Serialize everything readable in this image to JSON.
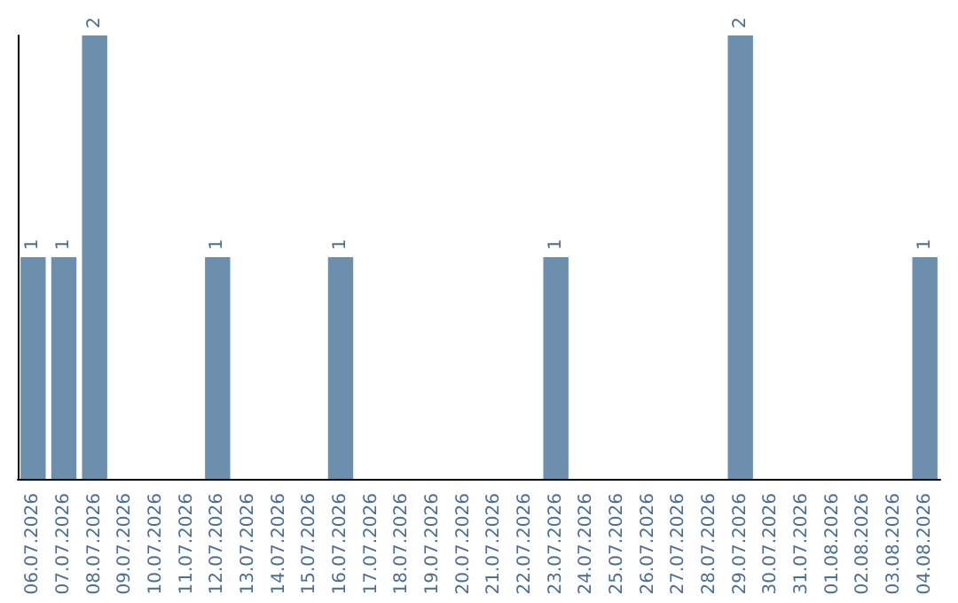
{
  "chart_data": {
    "type": "bar",
    "categories": [
      "06.07.2026",
      "07.07.2026",
      "08.07.2026",
      "09.07.2026",
      "10.07.2026",
      "11.07.2026",
      "12.07.2026",
      "13.07.2026",
      "14.07.2026",
      "15.07.2026",
      "16.07.2026",
      "17.07.2026",
      "18.07.2026",
      "19.07.2026",
      "20.07.2026",
      "21.07.2026",
      "22.07.2026",
      "23.07.2026",
      "24.07.2026",
      "25.07.2026",
      "26.07.2026",
      "27.07.2026",
      "28.07.2026",
      "29.07.2026",
      "30.07.2026",
      "31.07.2026",
      "01.08.2026",
      "02.08.2026",
      "03.08.2026",
      "04.08.2026"
    ],
    "values": [
      1,
      1,
      2,
      0,
      0,
      0,
      1,
      0,
      0,
      0,
      1,
      0,
      0,
      0,
      0,
      0,
      0,
      1,
      0,
      0,
      0,
      0,
      0,
      2,
      0,
      0,
      0,
      0,
      0,
      1
    ],
    "value_labels": [
      "1",
      "1",
      "2",
      null,
      null,
      null,
      "1",
      null,
      null,
      null,
      "1",
      null,
      null,
      null,
      null,
      null,
      null,
      "1",
      null,
      null,
      null,
      null,
      null,
      "2",
      null,
      null,
      null,
      null,
      null,
      "1"
    ],
    "color": "#6d8fae",
    "ylim": [
      0,
      2
    ],
    "tick_labels": "x"
  }
}
